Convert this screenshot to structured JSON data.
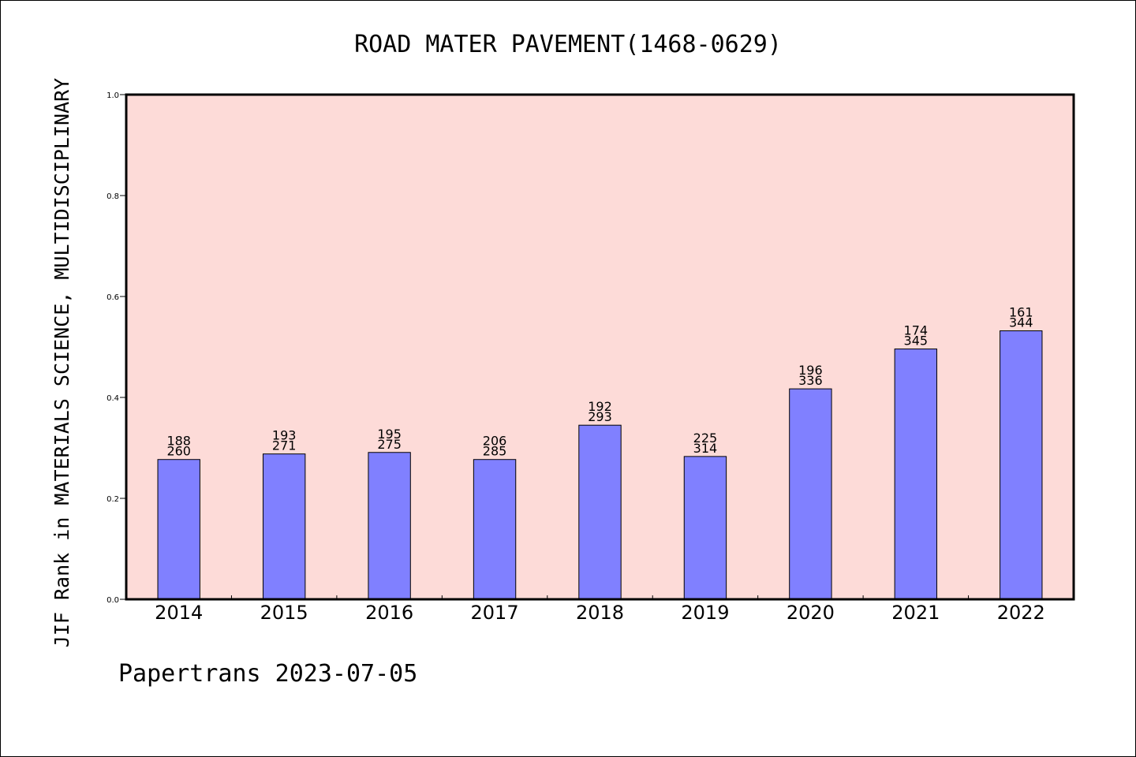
{
  "chart_data": {
    "type": "bar",
    "title": "ROAD MATER PAVEMENT(1468-0629)",
    "ylabel": "JIF Rank in MATERIALS SCIENCE, MULTIDISCIPLINARY",
    "xlabel": "",
    "ylim": [
      0,
      1.0
    ],
    "yticks": [
      "0.0",
      "0.2",
      "0.4",
      "0.6",
      "0.8",
      "1.0"
    ],
    "categories": [
      "2014",
      "2015",
      "2016",
      "2017",
      "2018",
      "2019",
      "2020",
      "2021",
      "2022"
    ],
    "values": [
      0.277,
      0.288,
      0.291,
      0.277,
      0.345,
      0.283,
      0.417,
      0.496,
      0.532
    ],
    "labels": [
      [
        "188",
        "260"
      ],
      [
        "193",
        "271"
      ],
      [
        "195",
        "275"
      ],
      [
        "206",
        "285"
      ],
      [
        "192",
        "293"
      ],
      [
        "225",
        "314"
      ],
      [
        "196",
        "336"
      ],
      [
        "174",
        "345"
      ],
      [
        "161",
        "344"
      ]
    ],
    "grid": false,
    "colors": {
      "background": "#fddbd8",
      "bar": "#8080ff"
    }
  },
  "footer": "Papertrans 2023-07-05"
}
